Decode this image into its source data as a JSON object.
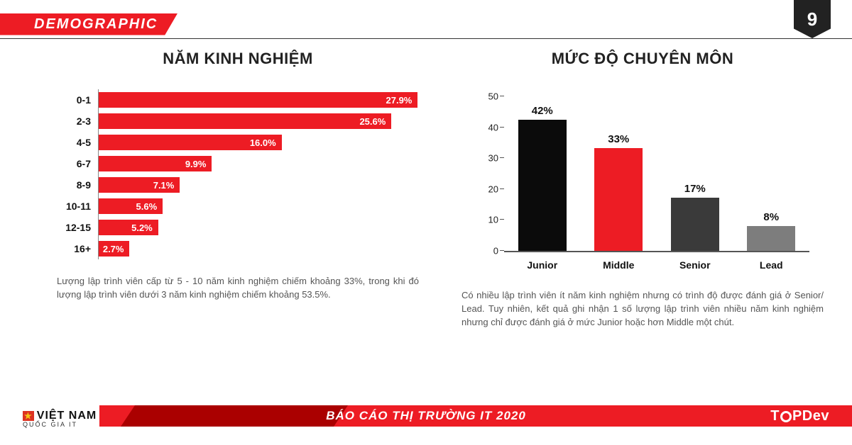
{
  "header": {
    "title": "DEMOGRAPHIC",
    "page_number": "9"
  },
  "experience_chart": {
    "title": "NĂM KINH NGHIỆM",
    "type": "bar-horizontal",
    "bar_color": "#ed1c24",
    "value_text_color": "#ffffff",
    "label_color": "#111111",
    "axis_color": "#888888",
    "label_fontsize": 14,
    "value_fontsize": 13,
    "max_value": 28,
    "rows": [
      {
        "label": "0-1",
        "value": 27.9,
        "value_label": "27.9%"
      },
      {
        "label": "2-3",
        "value": 25.6,
        "value_label": "25.6%"
      },
      {
        "label": "4-5",
        "value": 16.0,
        "value_label": "16.0%"
      },
      {
        "label": "6-7",
        "value": 9.9,
        "value_label": "9.9%"
      },
      {
        "label": "8-9",
        "value": 7.1,
        "value_label": "7.1%"
      },
      {
        "label": "10-11",
        "value": 5.6,
        "value_label": "5.6%"
      },
      {
        "label": "12-15",
        "value": 5.2,
        "value_label": "5.2%"
      },
      {
        "label": "16+",
        "value": 2.7,
        "value_label": "2.7%"
      }
    ],
    "caption": "Lượng lập trình viên cấp từ 5 - 10 năm kinh nghiệm chiếm khoảng 33%, trong khi đó lượng lập trình viên dưới 3 năm kinh nghiệm chiếm khoảng 53.5%."
  },
  "level_chart": {
    "title": "MỨC ĐỘ CHUYÊN MÔN",
    "type": "bar-vertical",
    "ylim": [
      0,
      50
    ],
    "ytick_step": 10,
    "yticks": [
      "0",
      "10",
      "20",
      "30",
      "40",
      "50"
    ],
    "axis_color": "#555555",
    "label_fontsize": 14,
    "value_fontsize": 15,
    "bars": [
      {
        "label": "Junior",
        "value": 42,
        "value_label": "42%",
        "color": "#0b0b0b"
      },
      {
        "label": "Middle",
        "value": 33,
        "value_label": "33%",
        "color": "#ed1c24"
      },
      {
        "label": "Senior",
        "value": 17,
        "value_label": "17%",
        "color": "#3a3a3a"
      },
      {
        "label": "Lead",
        "value": 8,
        "value_label": "8%",
        "color": "#7d7d7d"
      }
    ],
    "caption": "Có nhiều lập trình viên ít năm kinh nghiệm nhưng có trình độ được đánh giá ở Senior/ Lead. Tuy nhiên, kết quả ghi nhận 1 số lượng lập trình viên nhiều năm kinh nghiệm nhưng chỉ được đánh giá ở mức Junior hoặc hơn Middle một chút."
  },
  "footer": {
    "left_logo_line1": "VIỆT NAM",
    "left_logo_line2": "QUỐC GIA IT",
    "center_title": "BÁO CÁO THỊ TRƯỜNG IT 2020",
    "right_logo_prefix": "T",
    "right_logo_suffix": "PDev"
  },
  "colors": {
    "brand_red": "#ed1c24",
    "dark_red": "#a00000",
    "text_dark": "#111111",
    "text_muted": "#555555",
    "background": "#ffffff"
  }
}
